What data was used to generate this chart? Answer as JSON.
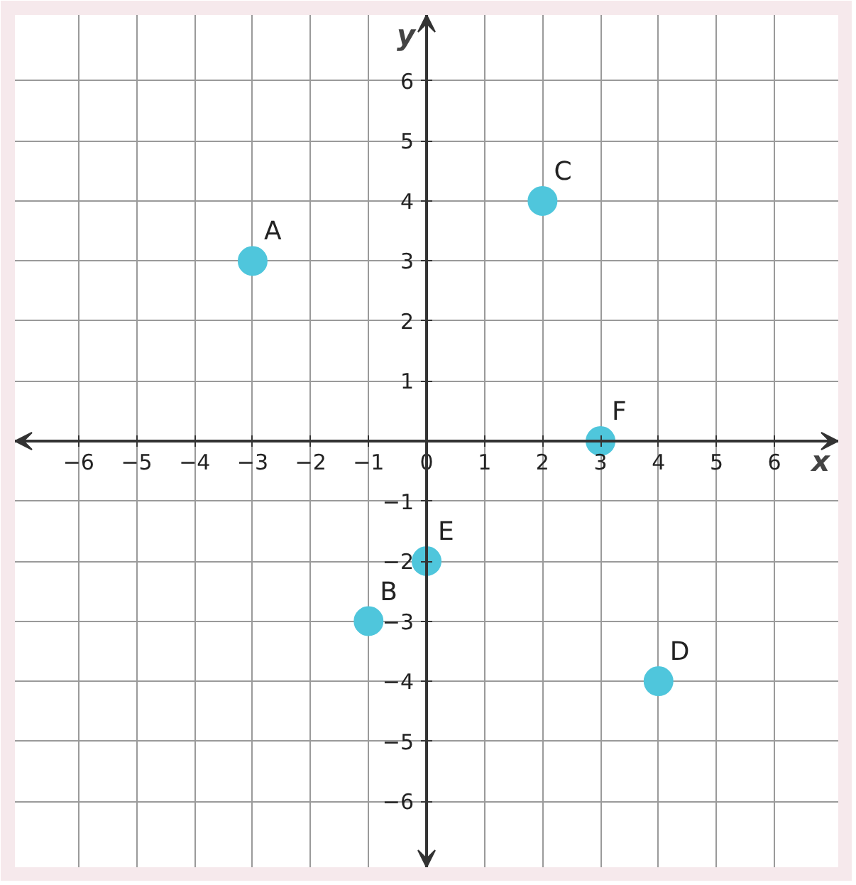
{
  "chart_data": {
    "type": "scatter",
    "xlabel": "x",
    "ylabel": "y",
    "x": [
      -3,
      -1,
      2,
      4,
      0,
      3
    ],
    "values": [
      3,
      -3,
      4,
      -4,
      -2,
      0
    ],
    "color": "#4fc6dc",
    "marker": "circle",
    "grid": true,
    "xlim": [
      -7.1,
      7.1
    ],
    "ylim": [
      -7.1,
      7.1
    ],
    "xticks": [
      -6,
      -5,
      -4,
      -3,
      -2,
      -1,
      0,
      1,
      2,
      3,
      4,
      5,
      6
    ],
    "yticks": [
      -6,
      -5,
      -4,
      -3,
      -2,
      -1,
      {
        "value": 0,
        "label": null
      },
      1,
      2,
      3,
      4,
      5,
      6
    ],
    "annotations": [
      {
        "text": "A",
        "x": -3,
        "y": 3
      },
      {
        "text": "B",
        "x": -1,
        "y": -3
      },
      {
        "text": "C",
        "x": 2,
        "y": 4
      },
      {
        "text": "D",
        "x": 4,
        "y": -4
      },
      {
        "text": "E",
        "x": 0,
        "y": -2
      },
      {
        "text": "F",
        "x": 3,
        "y": 0
      }
    ]
  }
}
